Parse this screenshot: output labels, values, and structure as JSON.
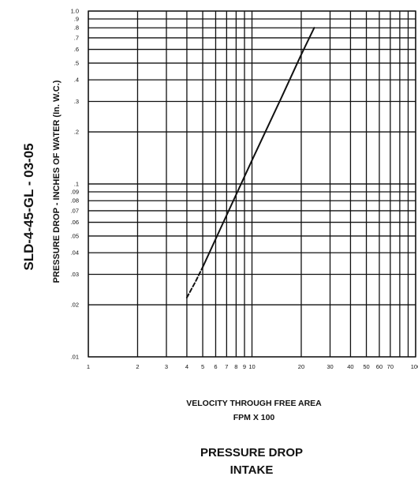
{
  "chart_data": {
    "type": "line",
    "title": "PRESSURE DROP",
    "subtitle": "INTAKE",
    "side_id": "SLD-4-45-GL - 03-05",
    "xlabel": "VELOCITY THROUGH FREE AREA",
    "xlabel_units": "FPM X 100",
    "ylabel": "PRESSURE DROP - INCHES OF WATER (In. W.C.)",
    "x_scale": "log",
    "y_scale": "log",
    "xlim": [
      1,
      100
    ],
    "ylim": [
      0.01,
      1.0
    ],
    "grid": true,
    "x_ticks": [
      {
        "v": 1,
        "label": "1"
      },
      {
        "v": 2,
        "label": "2"
      },
      {
        "v": 3,
        "label": "3"
      },
      {
        "v": 4,
        "label": "4"
      },
      {
        "v": 5,
        "label": "5"
      },
      {
        "v": 6,
        "label": "6"
      },
      {
        "v": 7,
        "label": "7"
      },
      {
        "v": 8,
        "label": "8"
      },
      {
        "v": 9,
        "label": "9"
      },
      {
        "v": 10,
        "label": "10"
      },
      {
        "v": 20,
        "label": "20"
      },
      {
        "v": 30,
        "label": "30"
      },
      {
        "v": 40,
        "label": "40"
      },
      {
        "v": 50,
        "label": "50"
      },
      {
        "v": 60,
        "label": "60"
      },
      {
        "v": 70,
        "label": "70"
      },
      {
        "v": 100,
        "label": "100"
      }
    ],
    "y_ticks": [
      {
        "v": 0.01,
        "label": ".01"
      },
      {
        "v": 0.02,
        "label": ".02"
      },
      {
        "v": 0.03,
        "label": ".03"
      },
      {
        "v": 0.04,
        "label": ".04"
      },
      {
        "v": 0.05,
        "label": ".05"
      },
      {
        "v": 0.06,
        "label": ".06"
      },
      {
        "v": 0.07,
        "label": ".07"
      },
      {
        "v": 0.08,
        "label": ".08"
      },
      {
        "v": 0.09,
        "label": ".09"
      },
      {
        "v": 0.1,
        "label": ".1"
      },
      {
        "v": 0.2,
        "label": ".2"
      },
      {
        "v": 0.3,
        "label": ".3"
      },
      {
        "v": 0.4,
        "label": ".4"
      },
      {
        "v": 0.5,
        "label": ".5"
      },
      {
        "v": 0.6,
        "label": ".6"
      },
      {
        "v": 0.7,
        "label": ".7"
      },
      {
        "v": 0.8,
        "label": ".8"
      },
      {
        "v": 0.9,
        "label": ".9"
      },
      {
        "v": 1.0,
        "label": "1.0"
      }
    ],
    "series": [
      {
        "style": "dashed",
        "x": [
          4,
          4.5,
          5.0
        ],
        "y": [
          0.022,
          0.027,
          0.033
        ]
      },
      {
        "style": "solid",
        "x": [
          5.0,
          7,
          10,
          15,
          20,
          24
        ],
        "y": [
          0.033,
          0.066,
          0.137,
          0.31,
          0.56,
          0.8
        ]
      }
    ]
  }
}
